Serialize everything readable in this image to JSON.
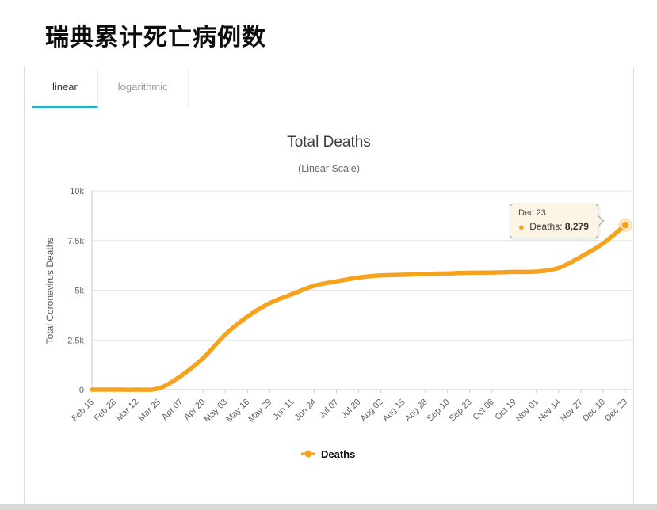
{
  "page": {
    "title": "瑞典累计死亡病例数"
  },
  "tabs": [
    {
      "label": "linear",
      "active": true
    },
    {
      "label": "logarithmic",
      "active": false
    }
  ],
  "colors": {
    "accent_tab": "#2ab0c5",
    "series_line": "#f5a31f",
    "grid": "#e6e6e6",
    "axis": "#c8c8c8",
    "tooltip_bg": "#fcf5e5"
  },
  "chart_data": {
    "type": "line",
    "title": "Total Deaths",
    "subtitle": "(Linear Scale)",
    "ylabel": "Total Coronavirus Deaths",
    "xlabel": "",
    "ylim": [
      0,
      10000
    ],
    "grid": true,
    "legend_position": "bottom",
    "yticks": [
      {
        "value": 0,
        "label": "0"
      },
      {
        "value": 2500,
        "label": "2.5k"
      },
      {
        "value": 5000,
        "label": "5k"
      },
      {
        "value": 7500,
        "label": "7.5k"
      },
      {
        "value": 10000,
        "label": "10k"
      }
    ],
    "categories": [
      "Feb 15",
      "Feb 28",
      "Mar 12",
      "Mar 25",
      "Apr 07",
      "Apr 20",
      "May 03",
      "May 16",
      "May 29",
      "Jun 11",
      "Jun 24",
      "Jul 07",
      "Jul 20",
      "Aug 02",
      "Aug 15",
      "Aug 28",
      "Sep 10",
      "Sep 23",
      "Oct 06",
      "Oct 19",
      "Nov 01",
      "Nov 14",
      "Nov 27",
      "Dec 10",
      "Dec 23"
    ],
    "series": [
      {
        "name": "Deaths",
        "color": "#f5a31f",
        "values": [
          0,
          0,
          1,
          62,
          687,
          1580,
          2769,
          3674,
          4350,
          4795,
          5230,
          5447,
          5639,
          5744,
          5776,
          5821,
          5846,
          5880,
          5892,
          5922,
          5938,
          6122,
          6681,
          7354,
          8279
        ]
      }
    ],
    "tooltip": {
      "date": "Dec 23",
      "series_label": "Deaths:",
      "value": "8,279"
    }
  }
}
